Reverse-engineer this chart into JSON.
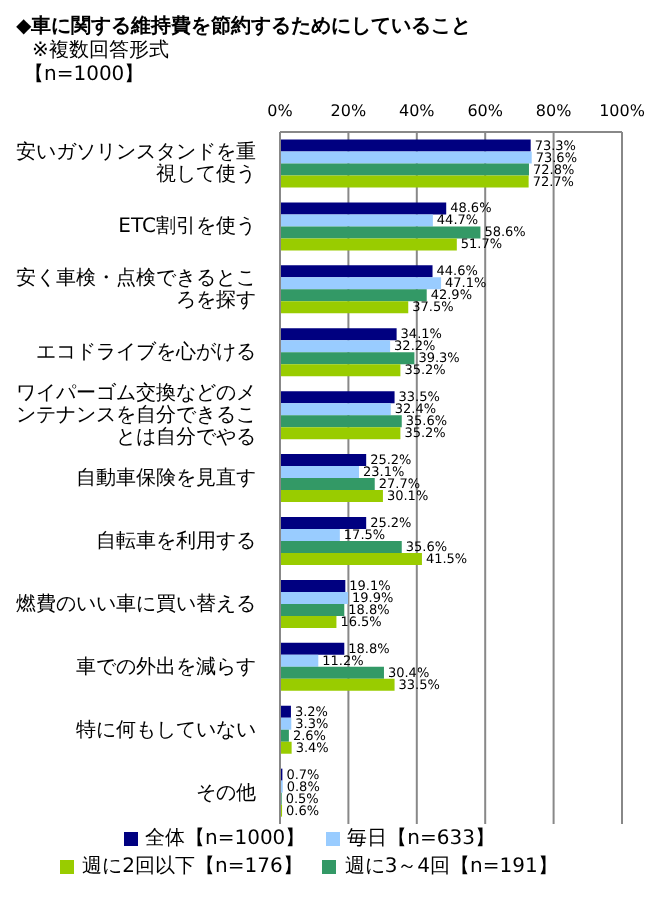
{
  "chart_data": {
    "type": "bar",
    "orientation": "horizontal",
    "title": "◆車に関する維持費を節約するためにしていること",
    "subtitle": "※複数回答形式",
    "annotations": [
      "【n=1000】"
    ],
    "categories": [
      "安いガソリンスタンドを重視して使う",
      "ETC割引を使う",
      "安く車検・点検できるところを探す",
      "エコドライブを心がける",
      "ワイパーゴム交換などのメンテナンスを自分できることは自分でやる",
      "自動車保険を見直す",
      "自転車を利用する",
      "燃費のいい車に買い替える",
      "車での外出を減らす",
      "特に何もしていない",
      "その他"
    ],
    "series": [
      {
        "name": "全体【n=1000】",
        "color": "#000080",
        "values": [
          73.3,
          48.6,
          44.6,
          34.1,
          33.5,
          25.2,
          25.2,
          19.1,
          18.8,
          3.2,
          0.7
        ],
        "value_labels": [
          "73.3%",
          "48.6%",
          "44.6%",
          "34.1%",
          "33.5%",
          "25.2%",
          "25.2%",
          "19.1%",
          "18.8%",
          "3.2%",
          "0.7%"
        ]
      },
      {
        "name": "毎日【n=633】",
        "color": "#99ccff",
        "values": [
          73.6,
          44.7,
          47.1,
          32.2,
          32.4,
          23.1,
          17.5,
          19.9,
          11.2,
          3.3,
          0.8
        ],
        "value_labels": [
          "73.6%",
          "44.7%",
          "47.1%",
          "32.2%",
          "32.4%",
          "23.1%",
          "17.5%",
          "19.9%",
          "11.2%",
          "3.3%",
          "0.8%"
        ]
      },
      {
        "name": "週に3～4回【n=191】",
        "color": "#339966",
        "values": [
          72.8,
          58.6,
          42.9,
          39.3,
          35.6,
          27.7,
          35.6,
          18.8,
          30.4,
          2.6,
          0.5
        ],
        "value_labels": [
          "72.8%",
          "58.6%",
          "42.9%",
          "39.3%",
          "35.6%",
          "27.7%",
          "35.6%",
          "18.8%",
          "30.4%",
          "2.6%",
          "0.5%"
        ]
      },
      {
        "name": "週に2回以下【n=176】",
        "color": "#99cc00",
        "values": [
          72.7,
          51.7,
          37.5,
          35.2,
          35.2,
          30.1,
          41.5,
          16.5,
          33.5,
          3.4,
          0.6
        ],
        "value_labels": [
          "72.7%",
          "51.7%",
          "37.5%",
          "35.2%",
          "35.2%",
          "30.1%",
          "41.5%",
          "16.5%",
          "33.5%",
          "3.4%",
          "0.6%"
        ]
      }
    ],
    "xlim": [
      0,
      100
    ],
    "xticks": [
      {
        "value": 0,
        "label": "0%"
      },
      {
        "value": 20,
        "label": "20%"
      },
      {
        "value": 40,
        "label": "40%"
      },
      {
        "value": 60,
        "label": "60%"
      },
      {
        "value": 80,
        "label": "80%"
      },
      {
        "value": 100,
        "label": "100%"
      }
    ],
    "grid": "x",
    "legend": "bottom"
  }
}
